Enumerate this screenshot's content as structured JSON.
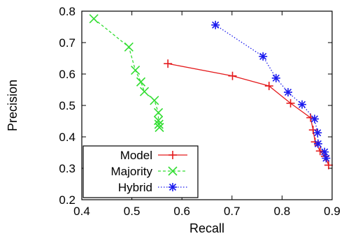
{
  "chart_data": {
    "type": "line",
    "title": "",
    "xlabel": "Recall",
    "ylabel": "Precision",
    "xlim": [
      0.4,
      0.9
    ],
    "ylim": [
      0.2,
      0.8
    ],
    "x_ticks": [
      "0.4",
      "0.5",
      "0.6",
      "0.7",
      "0.8",
      "0.9"
    ],
    "y_ticks": [
      "0.2",
      "0.3",
      "0.4",
      "0.5",
      "0.6",
      "0.7",
      "0.8"
    ],
    "grid": false,
    "legend_position": "bottom-left",
    "series": [
      {
        "name": "Model",
        "color": "#e41a1c",
        "marker": "plus",
        "line_style": "solid",
        "points": [
          {
            "x": 0.572,
            "y": 0.633
          },
          {
            "x": 0.701,
            "y": 0.594
          },
          {
            "x": 0.774,
            "y": 0.562
          },
          {
            "x": 0.817,
            "y": 0.507
          },
          {
            "x": 0.857,
            "y": 0.461
          },
          {
            "x": 0.862,
            "y": 0.422
          },
          {
            "x": 0.866,
            "y": 0.384
          },
          {
            "x": 0.876,
            "y": 0.355
          },
          {
            "x": 0.886,
            "y": 0.338
          },
          {
            "x": 0.893,
            "y": 0.31
          }
        ]
      },
      {
        "name": "Majority",
        "color": "#33dd33",
        "marker": "x",
        "line_style": "dashed",
        "points": [
          {
            "x": 0.424,
            "y": 0.776
          },
          {
            "x": 0.494,
            "y": 0.686
          },
          {
            "x": 0.507,
            "y": 0.612
          },
          {
            "x": 0.518,
            "y": 0.575
          },
          {
            "x": 0.525,
            "y": 0.544
          },
          {
            "x": 0.545,
            "y": 0.516
          },
          {
            "x": 0.553,
            "y": 0.477
          },
          {
            "x": 0.553,
            "y": 0.452
          },
          {
            "x": 0.554,
            "y": 0.44
          },
          {
            "x": 0.555,
            "y": 0.43
          }
        ]
      },
      {
        "name": "Hybrid",
        "color": "#1a1aee",
        "marker": "star",
        "line_style": "dotted",
        "points": [
          {
            "x": 0.667,
            "y": 0.756
          },
          {
            "x": 0.762,
            "y": 0.656
          },
          {
            "x": 0.788,
            "y": 0.587
          },
          {
            "x": 0.812,
            "y": 0.542
          },
          {
            "x": 0.84,
            "y": 0.503
          },
          {
            "x": 0.865,
            "y": 0.457
          },
          {
            "x": 0.871,
            "y": 0.413
          },
          {
            "x": 0.872,
            "y": 0.378
          },
          {
            "x": 0.885,
            "y": 0.352
          },
          {
            "x": 0.888,
            "y": 0.332
          }
        ]
      }
    ]
  }
}
